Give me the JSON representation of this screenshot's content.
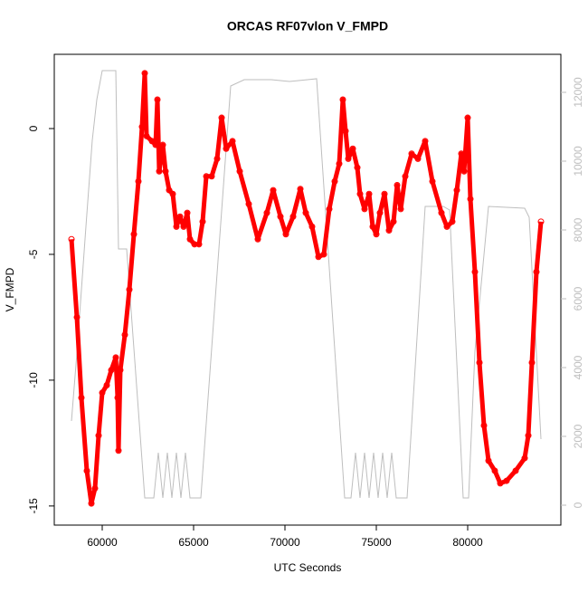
{
  "chart_data": {
    "type": "scatter",
    "title": "ORCAS RF07vlon V_FMPD",
    "xlabel": "UTC Seconds",
    "ylabel": "V_FMPD",
    "xlim": [
      57376,
      85099
    ],
    "xticks": [
      60000,
      65000,
      70000,
      75000,
      80000
    ],
    "ylim": [
      -15.76,
      2.95
    ],
    "yticks": [
      -15,
      -10,
      -5,
      0
    ],
    "y2lim": [
      -579,
      13105
    ],
    "y2ticks": [
      0,
      2000,
      4000,
      6000,
      8000,
      10000,
      12000
    ],
    "series": [
      {
        "color": "#ff0000",
        "x": [
          58317,
          58614,
          58861,
          59158,
          59406,
          59604,
          59802,
          60000,
          60248,
          60495,
          60743,
          60842,
          60891,
          60990,
          61238,
          61485,
          61733,
          61980,
          62178,
          62327,
          62426,
          62723,
          62921,
          63020,
          63119,
          63317,
          63465,
          63663,
          63861,
          64059,
          64257,
          64455,
          64653,
          64802,
          65050,
          65297,
          65495,
          65693,
          65990,
          66287,
          66535,
          66782,
          67129,
          67525,
          68020,
          68515,
          69010,
          69356,
          69752,
          70050,
          70446,
          70842,
          71139,
          71485,
          71832,
          72129,
          72426,
          72723,
          72970,
          73168,
          73317,
          73465,
          73713,
          73960,
          74109,
          74356,
          74604,
          74802,
          75000,
          75198,
          75446,
          75693,
          75941,
          76139,
          76337,
          76584,
          76931,
          77277,
          77673,
          78069,
          78564,
          78861,
          79158,
          79406,
          79653,
          79802,
          80000,
          80149,
          80396,
          80644,
          80891,
          81139,
          81485,
          81782,
          82129,
          82624,
          83119,
          83317,
          83515,
          83762,
          84010
        ],
        "values": [
          -4.4,
          -7.5,
          -10.7,
          -13.6,
          -14.9,
          -14.3,
          -12.2,
          -10.5,
          -10.2,
          -9.6,
          -9.1,
          -10.7,
          -12.8,
          -9.6,
          -8.2,
          -6.4,
          -4.2,
          -2.1,
          0.07,
          2.2,
          -0.3,
          -0.5,
          -0.65,
          1.15,
          -1.7,
          -0.65,
          -1.7,
          -2.45,
          -2.6,
          -3.9,
          -3.5,
          -3.9,
          -3.35,
          -4.4,
          -4.6,
          -4.6,
          -3.7,
          -1.9,
          -1.9,
          -1.2,
          0.43,
          -0.8,
          -0.5,
          -1.7,
          -3.0,
          -4.4,
          -3.35,
          -2.45,
          -3.5,
          -4.2,
          -3.5,
          -2.4,
          -3.35,
          -3.9,
          -5.1,
          -5.0,
          -3.2,
          -2.1,
          -1.4,
          1.15,
          -0.1,
          -1.2,
          -0.8,
          -1.55,
          -2.6,
          -3.2,
          -2.6,
          -3.9,
          -4.2,
          -3.35,
          -2.6,
          -4.05,
          -3.7,
          -2.25,
          -3.2,
          -1.9,
          -1.0,
          -1.2,
          -0.5,
          -2.1,
          -3.35,
          -3.9,
          -3.7,
          -2.45,
          -1.0,
          -1.7,
          0.43,
          -2.8,
          -5.7,
          -9.3,
          -11.8,
          -13.2,
          -13.6,
          -14.1,
          -14.0,
          -13.6,
          -13.1,
          -12.2,
          -9.3,
          -5.7,
          -3.7
        ]
      },
      {
        "color": "#bebebe",
        "axis": "y2",
        "x": [
          58317,
          58614,
          59109,
          59455,
          59703,
          60000,
          60743,
          60891,
          61337,
          62327,
          62822,
          63069,
          63317,
          63564,
          63812,
          64059,
          64307,
          64554,
          64802,
          65050,
          65396,
          67030,
          67772,
          69257,
          70248,
          71238,
          71733,
          73267,
          73614,
          73861,
          74109,
          74356,
          74604,
          74851,
          75099,
          75347,
          75594,
          75842,
          76089,
          76683,
          77673,
          78663,
          79010,
          79753,
          80050,
          80396,
          81139,
          83119,
          83366,
          84010
        ],
        "values": [
          2447,
          4421,
          8105,
          10605,
          11789,
          12632,
          12632,
          7447,
          7447,
          211,
          211,
          1526,
          211,
          1526,
          211,
          1526,
          211,
          1526,
          211,
          211,
          211,
          12184,
          12368,
          12368,
          12316,
          12368,
          12395,
          211,
          211,
          1526,
          211,
          1526,
          211,
          1526,
          211,
          1526,
          211,
          1526,
          211,
          211,
          8684,
          8684,
          8579,
          211,
          211,
          4474,
          8684,
          8632,
          8368,
          1921
        ]
      }
    ]
  }
}
